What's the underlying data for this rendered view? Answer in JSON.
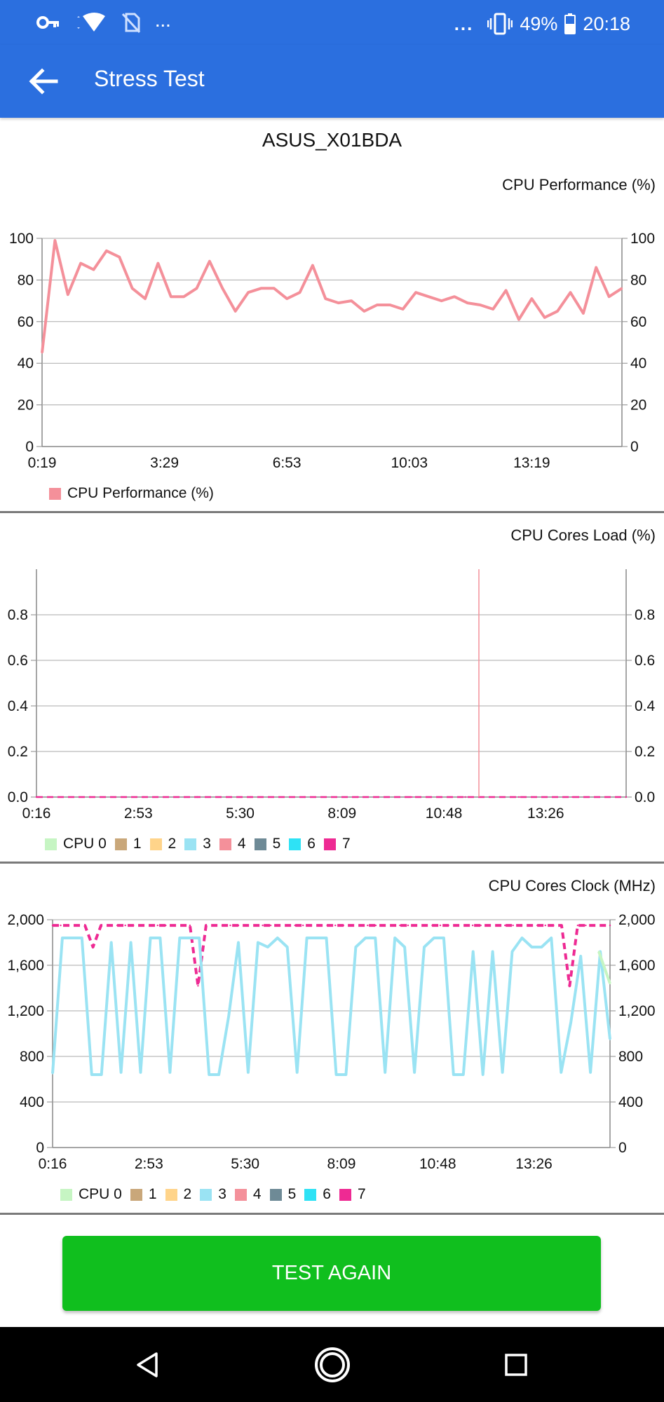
{
  "status_bar": {
    "battery": "49%",
    "time": "20:18",
    "left_overflow": "...",
    "right_overflow": "...",
    "icons": [
      "vpn-key-icon",
      "wifi-icon",
      "no-sim-icon",
      "vibrate-icon",
      "battery-icon"
    ]
  },
  "app_bar": {
    "title": "Stress Test",
    "back_icon": "arrow-left-icon",
    "color": "#2b6fdf"
  },
  "device": {
    "name": "ASUS_X01BDA"
  },
  "chart_data": [
    {
      "type": "line",
      "title": "CPU Performance (%)",
      "ylim": [
        0,
        100
      ],
      "y_ticks": [
        "0",
        "20",
        "40",
        "60",
        "80",
        "100"
      ],
      "x_ticks": [
        "0:19",
        "3:29",
        "6:53",
        "10:03",
        "13:19"
      ],
      "grid": true,
      "legend_position": "bottom-left",
      "series": [
        {
          "name": "CPU Performance (%)",
          "color": "#f4909a",
          "values": [
            45,
            99,
            73,
            88,
            85,
            94,
            91,
            76,
            71,
            88,
            72,
            72,
            76,
            89,
            76,
            65,
            74,
            76,
            76,
            71,
            74,
            87,
            71,
            69,
            70,
            65,
            68,
            68,
            66,
            74,
            72,
            70,
            72,
            69,
            68,
            66,
            75,
            61,
            71,
            62,
            65,
            74,
            64,
            86,
            72,
            76
          ]
        }
      ]
    },
    {
      "type": "line",
      "title": "CPU Cores Load (%)",
      "ylim": [
        0,
        1
      ],
      "y_ticks": [
        "0.0",
        "0.2",
        "0.4",
        "0.6",
        "0.8"
      ],
      "x_ticks": [
        "0:16",
        "2:53",
        "5:30",
        "8:09",
        "10:48",
        "13:26"
      ],
      "grid": true,
      "legend_position": "bottom-left",
      "legend": [
        {
          "label": "CPU 0",
          "color": "#c6f5c3"
        },
        {
          "label": "1",
          "color": "#c9a77a"
        },
        {
          "label": "2",
          "color": "#ffd48a"
        },
        {
          "label": "3",
          "color": "#9ae3f3"
        },
        {
          "label": "4",
          "color": "#f4909a"
        },
        {
          "label": "5",
          "color": "#6e8a96"
        },
        {
          "label": "6",
          "color": "#2ee2f5"
        },
        {
          "label": "7",
          "color": "#ee2a93"
        }
      ],
      "series": [
        {
          "name": "7",
          "color": "#ee2a93",
          "values": [
            0,
            0,
            0,
            0,
            0,
            0,
            0,
            0,
            0,
            0,
            0,
            0
          ]
        }
      ]
    },
    {
      "type": "line",
      "title": "CPU Cores Clock (MHz)",
      "ylim": [
        0,
        2000
      ],
      "y_ticks": [
        "0",
        "400",
        "800",
        "1,200",
        "1,600",
        "2,000"
      ],
      "x_ticks": [
        "0:16",
        "2:53",
        "5:30",
        "8:09",
        "10:48",
        "13:26"
      ],
      "grid": true,
      "legend_position": "bottom-left",
      "legend": [
        {
          "label": "CPU 0",
          "color": "#c6f5c3"
        },
        {
          "label": "1",
          "color": "#c9a77a"
        },
        {
          "label": "2",
          "color": "#ffd48a"
        },
        {
          "label": "3",
          "color": "#9ae3f3"
        },
        {
          "label": "4",
          "color": "#f4909a"
        },
        {
          "label": "5",
          "color": "#6e8a96"
        },
        {
          "label": "6",
          "color": "#2ee2f5"
        },
        {
          "label": "7",
          "color": "#ee2a93"
        }
      ],
      "series": [
        {
          "name": "7",
          "color": "#ee2a93",
          "values": [
            1950,
            1950,
            1950,
            1950,
            1950,
            1760,
            1950,
            1950,
            1950,
            1950,
            1950,
            1950,
            1950,
            1950,
            1950,
            1950,
            1950,
            1950,
            1420,
            1950,
            1950,
            1950,
            1950,
            1950,
            1950,
            1950,
            1950,
            1950,
            1950,
            1950,
            1950,
            1950,
            1950,
            1950,
            1950,
            1950,
            1950,
            1950,
            1950,
            1950,
            1950,
            1950,
            1950,
            1950,
            1950,
            1950,
            1950,
            1950,
            1950,
            1950,
            1950,
            1950,
            1950,
            1950,
            1950,
            1950,
            1950,
            1950,
            1950,
            1950,
            1950,
            1950,
            1950,
            1950,
            1420,
            1950,
            1950,
            1950,
            1950,
            1950
          ]
        },
        {
          "name": "3",
          "color": "#9ae3f3",
          "values": [
            650,
            1840,
            1840,
            1840,
            640,
            640,
            1800,
            660,
            1800,
            660,
            1840,
            1840,
            660,
            1840,
            1840,
            1840,
            640,
            640,
            1150,
            1800,
            660,
            1800,
            1760,
            1840,
            1760,
            660,
            1840,
            1840,
            1840,
            640,
            640,
            1760,
            1840,
            1840,
            660,
            1840,
            1760,
            660,
            1760,
            1840,
            1840,
            640,
            640,
            1720,
            640,
            1720,
            660,
            1720,
            1840,
            1760,
            1760,
            1840,
            660,
            1100,
            1680,
            660,
            1720,
            950
          ]
        },
        {
          "name": "CPU 0",
          "color": "#c6f5c3",
          "values": [
            1720,
            1440
          ]
        }
      ]
    }
  ],
  "actions": {
    "test_again": "TEST AGAIN",
    "test_again_color": "#10bf1e"
  },
  "nav_bar": {
    "icons": [
      "back-triangle-icon",
      "home-circle-icon",
      "recents-square-icon"
    ]
  }
}
